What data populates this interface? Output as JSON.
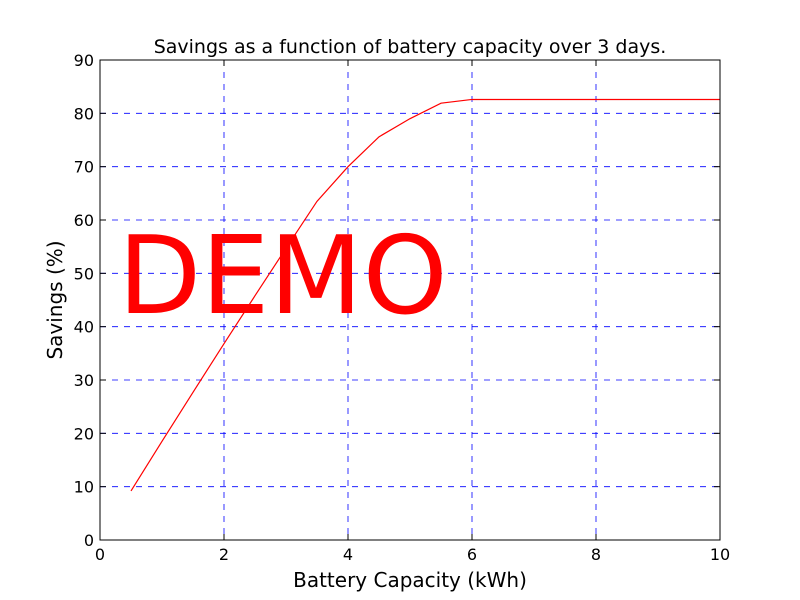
{
  "chart_data": {
    "type": "line",
    "title": "Savings as a function of battery capacity over 3 days.",
    "xlabel": "Battery Capacity (kWh)",
    "ylabel": "Savings (%)",
    "xlim": [
      0,
      10
    ],
    "ylim": [
      0,
      90
    ],
    "xticks": [
      0,
      2,
      4,
      6,
      8,
      10
    ],
    "yticks": [
      0,
      10,
      20,
      30,
      40,
      50,
      60,
      70,
      80,
      90
    ],
    "grid": true,
    "grid_style": "dashed",
    "grid_color": "#0000ff",
    "annotation": "DEMO",
    "annotation_color": "#ff0000",
    "series": [
      {
        "color": "#ff0000",
        "x": [
          0.5,
          1.0,
          1.5,
          2.0,
          2.5,
          3.0,
          3.5,
          4.0,
          4.5,
          5.0,
          5.5,
          6.0,
          6.5,
          7.0,
          7.5,
          8.0,
          8.5,
          9.0,
          9.5,
          10.0
        ],
        "y": [
          9.2,
          18.5,
          27.7,
          36.8,
          45.8,
          54.7,
          63.5,
          70.0,
          75.6,
          79.0,
          81.9,
          82.6,
          82.6,
          82.6,
          82.6,
          82.6,
          82.6,
          82.6,
          82.6,
          82.6
        ]
      }
    ]
  }
}
